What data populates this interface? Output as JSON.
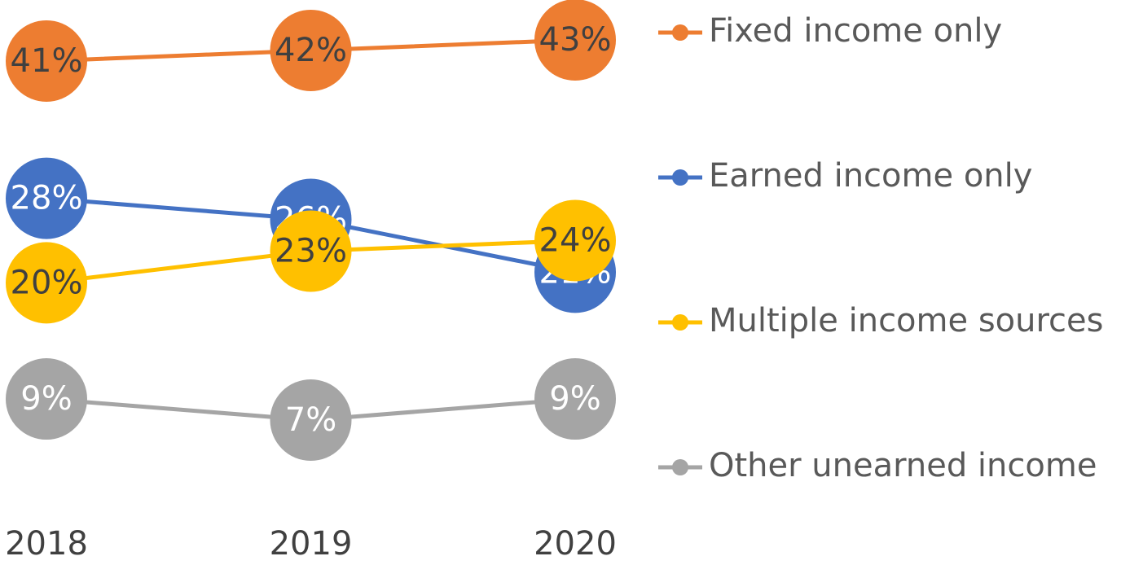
{
  "chart_data": {
    "type": "line",
    "categories": [
      "2018",
      "2019",
      "2020"
    ],
    "series": [
      {
        "name": "Fixed income only",
        "color": "#ED7D31",
        "label_color": "#404040",
        "values": [
          41,
          42,
          43
        ],
        "value_labels": [
          "41%",
          "42%",
          "43%"
        ]
      },
      {
        "name": "Earned income only",
        "color": "#4472C4",
        "label_color": "#ffffff",
        "values": [
          28,
          26,
          21
        ],
        "value_labels": [
          "28%",
          "26%",
          "21%"
        ]
      },
      {
        "name": "Multiple income sources",
        "color": "#FFC000",
        "label_color": "#404040",
        "values": [
          20,
          23,
          24
        ],
        "value_labels": [
          "20%",
          "23%",
          "24%"
        ]
      },
      {
        "name": "Other unearned income",
        "color": "#A5A5A5",
        "label_color": "#ffffff",
        "values": [
          9,
          7,
          9
        ],
        "value_labels": [
          "9%",
          "7%",
          "9%"
        ]
      }
    ],
    "legend": "right"
  }
}
